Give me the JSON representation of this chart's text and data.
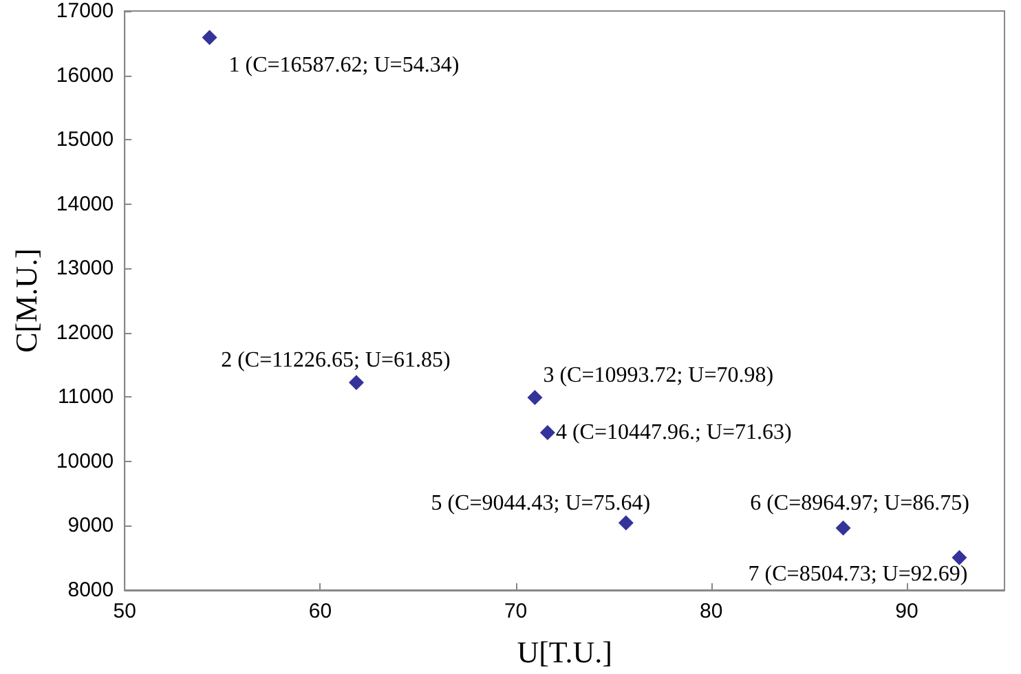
{
  "chart_data": {
    "type": "scatter",
    "xlabel": "U[T.U.]",
    "ylabel": "C[M.U.]",
    "x": [
      54.34,
      61.85,
      70.98,
      71.63,
      75.64,
      86.75,
      92.69
    ],
    "values": [
      16587.62,
      11226.65,
      10993.72,
      10447.96,
      9044.43,
      8964.97,
      8504.73
    ],
    "color": "#000080",
    "marker": "diamond",
    "grid": false,
    "xlim": [
      50,
      95
    ],
    "xticks": [
      50,
      60,
      70,
      80,
      90
    ],
    "ylim": [
      8000,
      17000
    ],
    "yticks": [
      8000,
      9000,
      10000,
      11000,
      12000,
      13000,
      14000,
      15000,
      16000,
      17000
    ],
    "annotations": [
      {
        "text": "1 (C=16587.62; U=54.34)",
        "x": 54.34,
        "y": 16587.62
      },
      {
        "text": "2 (C=11226.65; U=61.85)",
        "x": 61.85,
        "y": 11226.65
      },
      {
        "text": "3 (C=10993.72; U=70.98)",
        "x": 70.98,
        "y": 10993.72
      },
      {
        "text": "4 (C=10447.96.; U=71.63)",
        "x": 71.63,
        "y": 10447.96
      },
      {
        "text": "5 (C=9044.43; U=75.64)",
        "x": 75.64,
        "y": 9044.43
      },
      {
        "text": "6 (C=8964.97; U=86.75)",
        "x": 86.75,
        "y": 8964.97
      },
      {
        "text": "7 (C=8504.73; U=92.69)",
        "x": 92.69,
        "y": 8504.73
      }
    ]
  }
}
